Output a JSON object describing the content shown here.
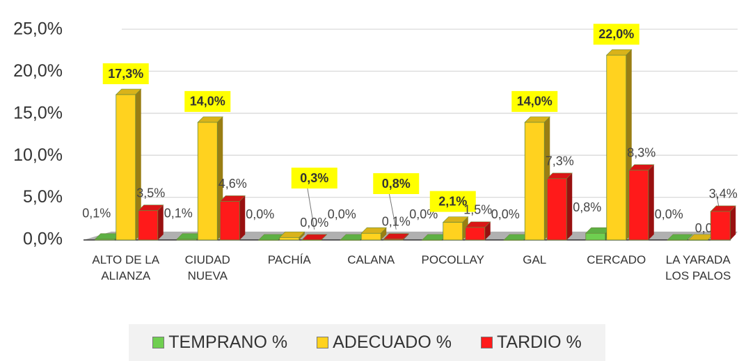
{
  "chart_data": {
    "type": "bar3d",
    "categories": [
      "ALTO DE LA ALIANZA",
      "CIUDAD NUEVA",
      "PACHÍA",
      "CALANA",
      "POCOLLAY",
      "GAL",
      "CERCADO",
      "LA YARADA LOS PALOS"
    ],
    "series": [
      {
        "name": "TEMPRANO %",
        "color": "#6fcf50",
        "values": [
          0.1,
          0.1,
          0.0,
          0.0,
          0.0,
          0.0,
          0.8,
          0.0
        ],
        "value_labels": [
          "0,1%",
          "0,1%",
          "0,0%",
          "0,0%",
          "0,0%",
          "0,0%",
          "0,8%",
          "0,0%"
        ]
      },
      {
        "name": "ADECUADO %",
        "color": "#ffd21f",
        "values": [
          17.3,
          14.0,
          0.3,
          0.8,
          2.1,
          14.0,
          22.0,
          0.0
        ],
        "value_labels": [
          "17,3%",
          "14,0%",
          "0,3%",
          "0,8%",
          "2,1%",
          "14,0%",
          "22,0%",
          "0,0%"
        ]
      },
      {
        "name": "TARDIO %",
        "color": "#ff1a1a",
        "values": [
          3.5,
          4.6,
          0.0,
          0.1,
          1.5,
          7.3,
          8.3,
          3.4
        ],
        "value_labels": [
          "3,5%",
          "4,6%",
          "0,0%",
          "0,1%",
          "1,5%",
          "7,3%",
          "8,3%",
          "3,4%"
        ]
      }
    ],
    "ylim": [
      0,
      25
    ],
    "yticks": [
      {
        "value": 0,
        "label": "0,0%"
      },
      {
        "value": 5,
        "label": "5,0%"
      },
      {
        "value": 10,
        "label": "10,0%"
      },
      {
        "value": 15,
        "label": "15,0%"
      },
      {
        "value": 20,
        "label": "20,0%"
      },
      {
        "value": 25,
        "label": "25,0%"
      }
    ],
    "grid": true
  }
}
